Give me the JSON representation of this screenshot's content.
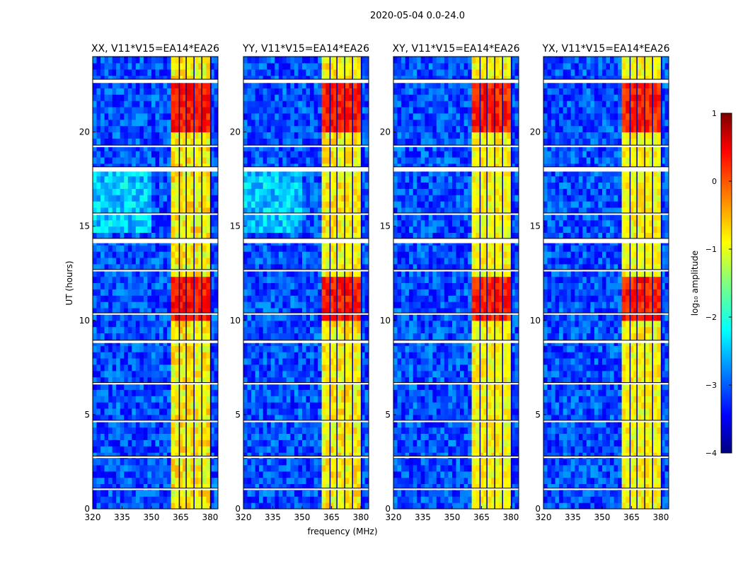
{
  "chart_data": {
    "type": "heatmap",
    "suptitle": "2020-05-04 0.0-24.0",
    "xlabel": "frequency (MHz)",
    "ylabel": "UT (hours)",
    "xlim": [
      320,
      384
    ],
    "ylim": [
      0,
      24
    ],
    "xticks": [
      320,
      335,
      350,
      365,
      380
    ],
    "yticks": [
      0,
      5,
      10,
      15,
      20
    ],
    "panels": [
      {
        "title": "XX, V11*V15=EA14*EA26",
        "band_strength": 1.0
      },
      {
        "title": "YY, V11*V15=EA14*EA26",
        "band_strength": 0.9
      },
      {
        "title": "XY, V11*V15=EA14*EA26",
        "band_strength": 0.75
      },
      {
        "title": "YX, V11*V15=EA14*EA26",
        "band_strength": 0.75
      }
    ],
    "background_level": -3.0,
    "rfi_band_mhz": [
      360,
      380
    ],
    "rfi_band_level": -1.0,
    "rfi_peak_hours": [
      [
        10.0,
        12.2
      ],
      [
        20.0,
        22.5
      ]
    ],
    "rfi_peak_level": 0.3,
    "subband_gaps_mhz": [
      364,
      367.5,
      371.5,
      375.5
    ],
    "flagged_hours": [
      [
        14.1,
        14.35
      ],
      [
        17.9,
        18.15
      ],
      [
        22.6,
        22.8
      ],
      [
        10.3,
        10.4
      ],
      [
        8.8,
        8.95
      ],
      [
        1.0,
        1.1
      ],
      [
        4.6,
        4.7
      ],
      [
        15.6,
        15.7
      ],
      [
        19.2,
        19.3
      ],
      [
        12.6,
        12.7
      ],
      [
        6.6,
        6.7
      ],
      [
        2.7,
        2.8
      ]
    ],
    "colorbar": {
      "label": "log₁₀ amplitude",
      "range": [
        -4,
        1
      ],
      "ticks": [
        1,
        0,
        -1,
        -2,
        -3,
        -4
      ],
      "colormap": "jet"
    }
  }
}
